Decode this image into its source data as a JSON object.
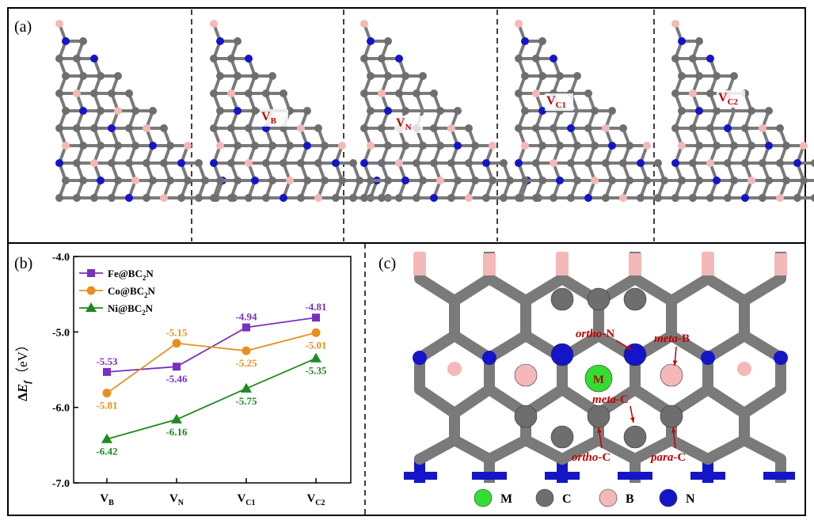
{
  "panels": {
    "a": {
      "label": "(a)",
      "vacancies": [
        {
          "main": "",
          "sub": ""
        },
        {
          "main": "V",
          "sub": "B"
        },
        {
          "main": "V",
          "sub": "N"
        },
        {
          "main": "V",
          "sub": "C1"
        },
        {
          "main": "V",
          "sub": "C2"
        }
      ]
    },
    "b": {
      "label": "(b)"
    },
    "c": {
      "label": "(c)",
      "metal": "M",
      "sites": [
        {
          "italic": "ortho",
          "rest": "-N"
        },
        {
          "italic": "meta",
          "rest": "-B"
        },
        {
          "italic": "meta",
          "rest": "-C"
        },
        {
          "italic": "ortho",
          "rest": "-C"
        },
        {
          "italic": "para",
          "rest": "-C"
        }
      ],
      "legend": [
        {
          "symbol": "M",
          "color": "#33dd33"
        },
        {
          "symbol": "C",
          "color": "#6e6e6e"
        },
        {
          "symbol": "B",
          "color": "#f4b8b8"
        },
        {
          "symbol": "N",
          "color": "#1515c8"
        }
      ]
    }
  },
  "colors": {
    "carbon": "#6e6e6e",
    "boron": "#f4b8b8",
    "nitrogen": "#1515c8",
    "metal": "#33dd33",
    "label_red": "#c00000"
  },
  "chart_data": {
    "type": "line",
    "categories": [
      {
        "main": "V",
        "sub": "B"
      },
      {
        "main": "V",
        "sub": "N"
      },
      {
        "main": "V",
        "sub": "C1"
      },
      {
        "main": "V",
        "sub": "C2"
      }
    ],
    "ylabel": {
      "prefix": "Δ",
      "main": "E",
      "sub": "f",
      "unit": "（eV）"
    },
    "ylim": [
      -7.0,
      -4.0
    ],
    "yticks": [
      "-4.0",
      "-5.0",
      "-6.0",
      "-7.0"
    ],
    "legend_position": "top-left",
    "series": [
      {
        "name": {
          "a": "Fe@BC",
          "sub": "2",
          "b": "N"
        },
        "color": "#7b2fbe",
        "marker": "square",
        "values": [
          -5.53,
          -5.46,
          -4.94,
          -4.81
        ],
        "labels": [
          "-5.53",
          "-5.46",
          "-4.94",
          "-4.81"
        ],
        "label_pos": [
          "above",
          "below",
          "above",
          "above"
        ]
      },
      {
        "name": {
          "a": "Co@BC",
          "sub": "2",
          "b": "N"
        },
        "color": "#e8901e",
        "marker": "circle",
        "values": [
          -5.81,
          -5.15,
          -5.25,
          -5.01
        ],
        "labels": [
          "-5.81",
          "-5.15",
          "-5.25",
          "-5.01"
        ],
        "label_pos": [
          "below",
          "above",
          "below",
          "below"
        ]
      },
      {
        "name": {
          "a": "Ni@BC",
          "sub": "2",
          "b": "N"
        },
        "color": "#1f8a1f",
        "marker": "triangle",
        "values": [
          -6.42,
          -6.16,
          -5.75,
          -5.35
        ],
        "labels": [
          "-6.42",
          "-6.16",
          "-5.75",
          "-5.35"
        ],
        "label_pos": [
          "below",
          "below",
          "below",
          "below"
        ]
      }
    ]
  }
}
